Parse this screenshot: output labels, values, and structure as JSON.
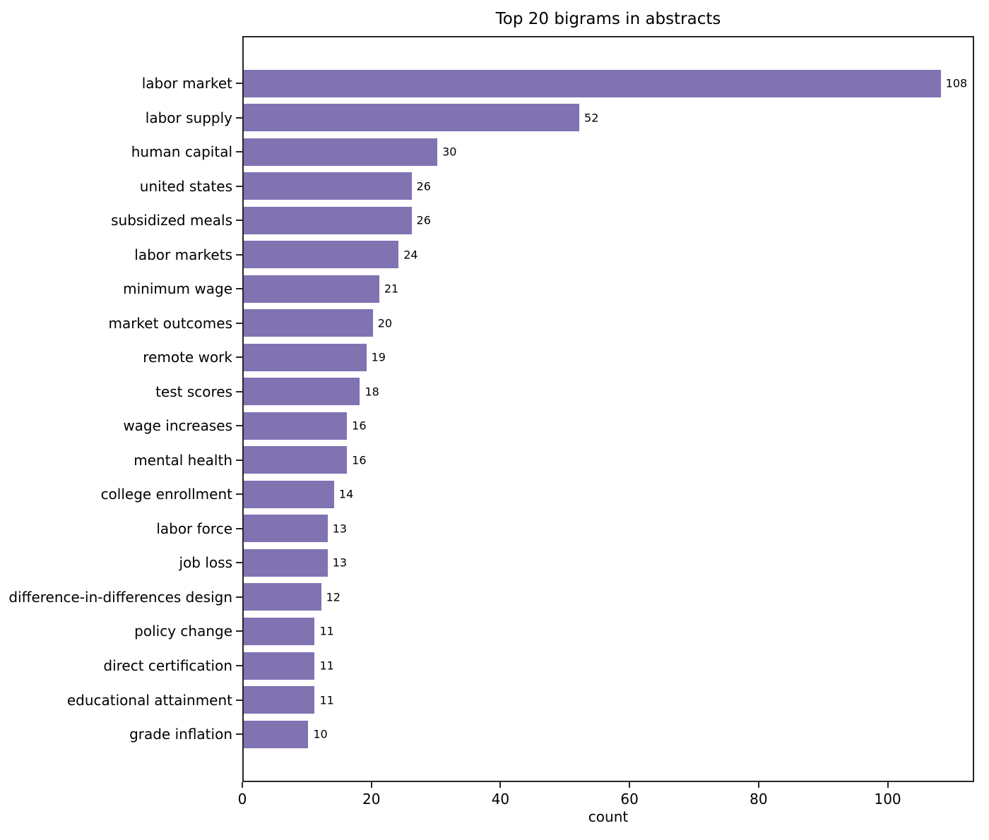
{
  "accent_color": "#8172b2",
  "chart_data": {
    "type": "bar",
    "orientation": "horizontal",
    "title": "Top 20 bigrams in abstracts",
    "xlabel": "count",
    "ylabel": "",
    "categories": [
      "labor market",
      "labor supply",
      "human capital",
      "united states",
      "subsidized meals",
      "labor markets",
      "minimum wage",
      "market outcomes",
      "remote work",
      "test scores",
      "wage increases",
      "mental health",
      "college enrollment",
      "labor force",
      "job loss",
      "difference-in-differences design",
      "policy change",
      "direct certification",
      "educational attainment",
      "grade inflation"
    ],
    "values": [
      108,
      52,
      30,
      26,
      26,
      24,
      21,
      20,
      19,
      18,
      16,
      16,
      14,
      13,
      13,
      12,
      11,
      11,
      11,
      10
    ],
    "value_labels": [
      "108",
      "52",
      "30",
      "26",
      "26",
      "24",
      "21",
      "20",
      "19",
      "18",
      "16",
      "16",
      "14",
      "13",
      "13",
      "12",
      "11",
      "11",
      "11",
      "10"
    ],
    "xlim": [
      0,
      113.4
    ],
    "xticks": [
      0,
      20,
      40,
      60,
      80,
      100
    ],
    "xtick_labels": [
      "0",
      "20",
      "40",
      "60",
      "80",
      "100"
    ],
    "bar_color": "#8172b2",
    "grid": false,
    "legend": "none",
    "value_labels_shown": true
  }
}
